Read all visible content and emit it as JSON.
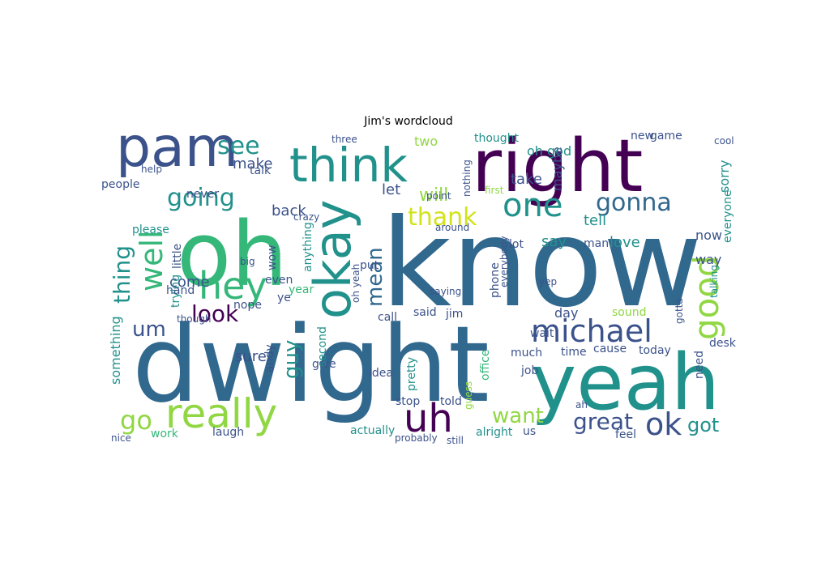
{
  "figure": {
    "title": "Jim's wordcloud"
  },
  "palette": {
    "purple": "#440154",
    "indigo": "#3b528b",
    "blue": "#31688e",
    "teal": "#21918c",
    "green": "#35b779",
    "lime": "#90d743",
    "yellow": "#d2e21b"
  },
  "words": [
    {
      "text": "know",
      "color": "blue"
    },
    {
      "text": "dwight",
      "color": "blue"
    },
    {
      "text": "oh",
      "color": "green"
    },
    {
      "text": "yeah",
      "color": "teal"
    },
    {
      "text": "right",
      "color": "purple"
    },
    {
      "text": "pam",
      "color": "indigo"
    },
    {
      "text": "think",
      "color": "teal"
    },
    {
      "text": "okay",
      "color": "teal"
    },
    {
      "text": "hey",
      "color": "green"
    },
    {
      "text": "really",
      "color": "lime"
    },
    {
      "text": "michael",
      "color": "indigo"
    },
    {
      "text": "good",
      "color": "lime"
    },
    {
      "text": "uh",
      "color": "purple"
    },
    {
      "text": "one",
      "color": "teal"
    },
    {
      "text": "well",
      "color": "green"
    },
    {
      "text": "going",
      "color": "teal"
    },
    {
      "text": "gonna",
      "color": "blue"
    },
    {
      "text": "ok",
      "color": "indigo"
    },
    {
      "text": "great",
      "color": "indigo"
    },
    {
      "text": "see",
      "color": "teal"
    },
    {
      "text": "thank",
      "color": "yellow"
    },
    {
      "text": "look",
      "color": "purple"
    },
    {
      "text": "go",
      "color": "lime"
    },
    {
      "text": "thing",
      "color": "teal"
    },
    {
      "text": "want",
      "color": "lime"
    },
    {
      "text": "guy",
      "color": "teal"
    },
    {
      "text": "got",
      "color": "teal"
    },
    {
      "text": "mean",
      "color": "blue"
    },
    {
      "text": "um",
      "color": "indigo"
    },
    {
      "text": "will",
      "color": "lime"
    },
    {
      "text": "back",
      "color": "indigo"
    },
    {
      "text": "make",
      "color": "indigo"
    },
    {
      "text": "let",
      "color": "indigo"
    },
    {
      "text": "sure",
      "color": "indigo"
    },
    {
      "text": "come",
      "color": "indigo"
    },
    {
      "text": "say",
      "color": "teal"
    },
    {
      "text": "tell",
      "color": "teal"
    },
    {
      "text": "take",
      "color": "indigo"
    },
    {
      "text": "love",
      "color": "teal"
    },
    {
      "text": "day",
      "color": "indigo"
    },
    {
      "text": "way",
      "color": "indigo"
    },
    {
      "text": "now",
      "color": "indigo"
    },
    {
      "text": "two",
      "color": "lime"
    },
    {
      "text": "oh god",
      "color": "teal"
    },
    {
      "text": "thought",
      "color": "teal"
    },
    {
      "text": "maybe",
      "color": "indigo"
    },
    {
      "text": "sorry",
      "color": "teal"
    },
    {
      "text": "everyone",
      "color": "teal"
    },
    {
      "text": "something",
      "color": "teal"
    },
    {
      "text": "people",
      "color": "indigo"
    },
    {
      "text": "never",
      "color": "indigo"
    },
    {
      "text": "please",
      "color": "teal"
    },
    {
      "text": "talk",
      "color": "indigo"
    },
    {
      "text": "little",
      "color": "indigo"
    },
    {
      "text": "trying",
      "color": "teal"
    },
    {
      "text": "hand",
      "color": "indigo"
    },
    {
      "text": "wow",
      "color": "indigo"
    },
    {
      "text": "anything",
      "color": "teal"
    },
    {
      "text": "even",
      "color": "indigo"
    },
    {
      "text": "ye",
      "color": "indigo"
    },
    {
      "text": "year",
      "color": "green"
    },
    {
      "text": "nope",
      "color": "indigo"
    },
    {
      "text": "put",
      "color": "indigo"
    },
    {
      "text": "call",
      "color": "indigo"
    },
    {
      "text": "said",
      "color": "indigo"
    },
    {
      "text": "jim",
      "color": "indigo"
    },
    {
      "text": "phone",
      "color": "indigo"
    },
    {
      "text": "wait",
      "color": "indigo"
    },
    {
      "text": "sound",
      "color": "lime"
    },
    {
      "text": "lot",
      "color": "indigo"
    },
    {
      "text": "man",
      "color": "indigo"
    },
    {
      "text": "andy",
      "color": "indigo"
    },
    {
      "text": "give",
      "color": "indigo"
    },
    {
      "text": "second",
      "color": "teal"
    },
    {
      "text": "actually",
      "color": "teal"
    },
    {
      "text": "alright",
      "color": "teal"
    },
    {
      "text": "us",
      "color": "indigo"
    },
    {
      "text": "work",
      "color": "green"
    },
    {
      "text": "laugh",
      "color": "indigo"
    },
    {
      "text": "nice",
      "color": "indigo"
    },
    {
      "text": "time",
      "color": "indigo"
    },
    {
      "text": "cause",
      "color": "indigo"
    },
    {
      "text": "today",
      "color": "indigo"
    },
    {
      "text": "desk",
      "color": "indigo"
    },
    {
      "text": "need",
      "color": "indigo"
    },
    {
      "text": "talking",
      "color": "teal"
    },
    {
      "text": "office",
      "color": "green"
    },
    {
      "text": "pretty",
      "color": "teal"
    },
    {
      "text": "idea",
      "color": "indigo"
    },
    {
      "text": "job",
      "color": "indigo"
    },
    {
      "text": "much",
      "color": "indigo"
    },
    {
      "text": "stop",
      "color": "indigo"
    },
    {
      "text": "told",
      "color": "indigo"
    },
    {
      "text": "feel",
      "color": "indigo"
    },
    {
      "text": "probably",
      "color": "indigo"
    },
    {
      "text": "still",
      "color": "indigo"
    },
    {
      "text": "new",
      "color": "indigo"
    },
    {
      "text": "game",
      "color": "indigo"
    },
    {
      "text": "first",
      "color": "lime"
    },
    {
      "text": "nothing",
      "color": "indigo"
    },
    {
      "text": "three",
      "color": "indigo"
    },
    {
      "text": "point",
      "color": "indigo"
    },
    {
      "text": "around",
      "color": "indigo"
    },
    {
      "text": "help",
      "color": "indigo"
    },
    {
      "text": "big",
      "color": "indigo"
    },
    {
      "text": "yep",
      "color": "indigo"
    },
    {
      "text": "though",
      "color": "indigo"
    },
    {
      "text": "gotta",
      "color": "indigo"
    },
    {
      "text": "everybody",
      "color": "indigo"
    },
    {
      "text": "saying",
      "color": "indigo"
    },
    {
      "text": "crazy",
      "color": "indigo"
    },
    {
      "text": "guess",
      "color": "lime"
    },
    {
      "text": "oh yeah",
      "color": "indigo"
    },
    {
      "text": "ah",
      "color": "indigo"
    },
    {
      "text": "cool",
      "color": "indigo"
    }
  ]
}
